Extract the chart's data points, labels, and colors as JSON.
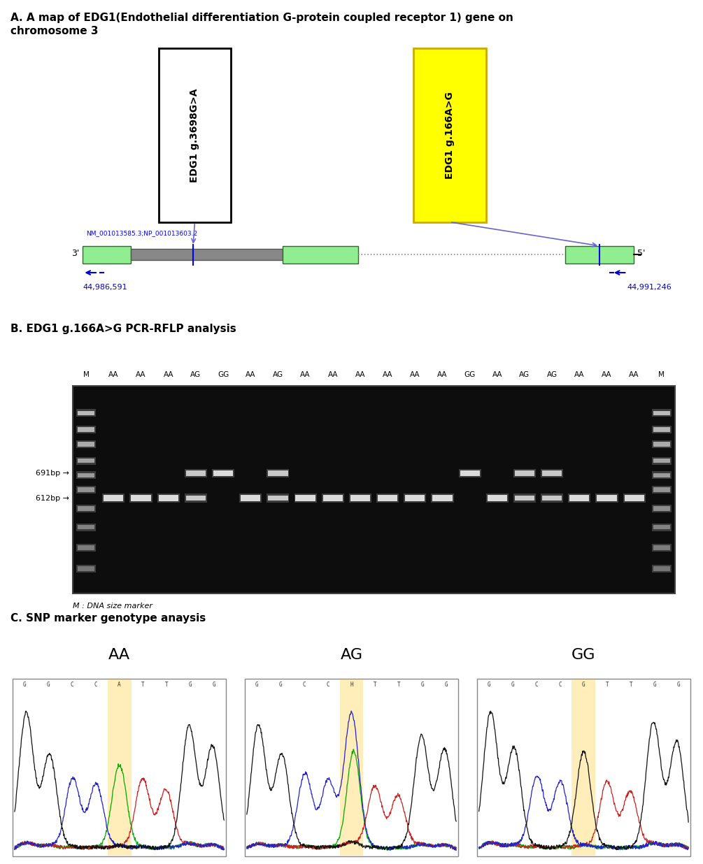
{
  "title_a": "A. A map of EDG1(Endothelial differentiation G-protein coupled receptor 1) gene on\nchromosome 3",
  "title_b": "B. EDG1 g.166A>G PCR-RFLP analysis",
  "title_c": "C. SNP marker genotype anaysis",
  "box1_label": "EDG1 g.3698G>A",
  "box2_label": "EDG1 g.166A>G",
  "coord_left": "44,986,591",
  "coord_right": "44,991,246",
  "nm_label": "NM_001013585.3;NP_001013603.2",
  "label_3prime": "3'",
  "label_5prime": "5'",
  "gel_labels": [
    "M",
    "AA",
    "AA",
    "AA",
    "AG",
    "GG",
    "AA",
    "AG",
    "AA",
    "AA",
    "AA",
    "AA",
    "AA",
    "AA",
    "GG",
    "AA",
    "AG",
    "AG",
    "AA",
    "AA",
    "AA",
    "M"
  ],
  "size_marker_labels": [
    "691bp →",
    "612bp →"
  ],
  "marker_note": "M : DNA size marker",
  "genotypes": [
    "AA",
    "AG",
    "GG"
  ],
  "box1_fill": "#ffffff",
  "box2_fill": "#ffff00",
  "gel_bg": "#0d0d0d",
  "seq_bg": "#ffffff",
  "seq_bases_aa": [
    "G",
    "G",
    "C",
    "C",
    "A",
    "T",
    "T",
    "G",
    "G"
  ],
  "seq_bases_ag": [
    "G",
    "G",
    "C",
    "C",
    "H",
    "T",
    "T",
    "G",
    "G"
  ],
  "seq_bases_gg": [
    "G",
    "G",
    "C",
    "C",
    "G",
    "T",
    "T",
    "G",
    "G"
  ],
  "snp_highlight_color": "#ffe080",
  "snp_idx": 4
}
